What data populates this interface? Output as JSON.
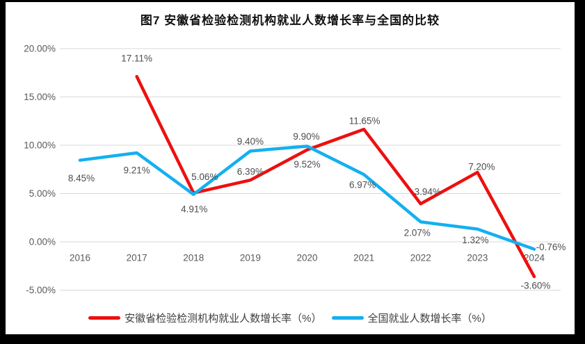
{
  "title": "图7 安徽省检验检测机构就业人数增长率与全国的比较",
  "colors": {
    "background": "#ffffff",
    "frame": "#000000",
    "grid": "#d9d9d9",
    "axis_text": "#595959",
    "data_label_text": "#4d4d4d",
    "title_text": "#111111",
    "anhui_red": "#ee0f0f",
    "national_blue": "#13b0f0"
  },
  "chart_data": {
    "type": "line",
    "title": "图7 安徽省检验检测机构就业人数增长率与全国的比较",
    "categories": [
      "2016",
      "2017",
      "2018",
      "2019",
      "2020",
      "2021",
      "2022",
      "2023",
      "2024"
    ],
    "y_ticks": [
      {
        "label": "20.00%",
        "value": 20
      },
      {
        "label": "15.00%",
        "value": 15
      },
      {
        "label": "10.00%",
        "value": 10
      },
      {
        "label": "5.00%",
        "value": 5
      },
      {
        "label": "0.00%",
        "value": 0
      },
      {
        "label": "-5.00%",
        "value": -5
      }
    ],
    "ylim": [
      -5,
      20
    ],
    "grid": true,
    "legend_position": "bottom",
    "series": [
      {
        "name": "安徽省检验检测机构就业人数增长率（%）",
        "key": "anhui",
        "color": "#ee0f0f",
        "values": [
          null,
          17.11,
          5.06,
          6.39,
          9.52,
          11.65,
          3.94,
          7.2,
          -3.6
        ],
        "labels": [
          null,
          "17.11%",
          "5.06%",
          "6.39%",
          "9.52%",
          "11.65%",
          "3.94%",
          "7.20%",
          "-3.60%"
        ],
        "label_offsets": [
          null,
          [
            0,
            -26
          ],
          [
            16,
            -23
          ],
          [
            0,
            -12
          ],
          [
            0,
            21
          ],
          [
            1,
            -12
          ],
          [
            10,
            -17
          ],
          [
            6,
            -8
          ],
          [
            2,
            13
          ]
        ]
      },
      {
        "name": "全国就业人数增长率（%）",
        "key": "national",
        "color": "#13b0f0",
        "values": [
          8.45,
          9.21,
          4.91,
          9.4,
          9.9,
          6.97,
          2.07,
          1.32,
          -0.76
        ],
        "labels": [
          "8.45%",
          "9.21%",
          "4.91%",
          "9.40%",
          "9.90%",
          "6.97%",
          "2.07%",
          "1.32%",
          "-0.76%"
        ],
        "label_offsets": [
          [
            2,
            26
          ],
          [
            0,
            25
          ],
          [
            1,
            21
          ],
          [
            0,
            -14
          ],
          [
            -1,
            -14
          ],
          [
            -2,
            15
          ],
          [
            -5,
            16
          ],
          [
            -3,
            16
          ],
          [
            24,
            -3
          ]
        ]
      }
    ]
  }
}
